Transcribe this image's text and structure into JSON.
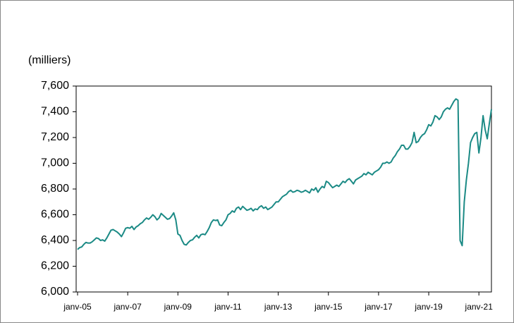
{
  "chart_data": {
    "type": "line",
    "y_label": "(milliers)",
    "categories": [
      "janv-05",
      null,
      null,
      null,
      null,
      null,
      null,
      null,
      null,
      null,
      null,
      null,
      null,
      null,
      null,
      null,
      null,
      null,
      null,
      null,
      null,
      null,
      null,
      null,
      "janv-07",
      null,
      null,
      null,
      null,
      null,
      null,
      null,
      null,
      null,
      null,
      null,
      null,
      null,
      null,
      null,
      null,
      null,
      null,
      null,
      null,
      null,
      null,
      null,
      "janv-09",
      null,
      null,
      null,
      null,
      null,
      null,
      null,
      null,
      null,
      null,
      null,
      null,
      null,
      null,
      null,
      null,
      null,
      null,
      null,
      null,
      null,
      null,
      null,
      "janv-11",
      null,
      null,
      null,
      null,
      null,
      null,
      null,
      null,
      null,
      null,
      null,
      null,
      null,
      null,
      null,
      null,
      null,
      null,
      null,
      null,
      null,
      null,
      null,
      "janv-13",
      null,
      null,
      null,
      null,
      null,
      null,
      null,
      null,
      null,
      null,
      null,
      null,
      null,
      null,
      null,
      null,
      null,
      null,
      null,
      null,
      null,
      null,
      null,
      "janv-15",
      null,
      null,
      null,
      null,
      null,
      null,
      null,
      null,
      null,
      null,
      null,
      null,
      null,
      null,
      null,
      null,
      null,
      null,
      null,
      null,
      null,
      null,
      null,
      "janv-17",
      null,
      null,
      null,
      null,
      null,
      null,
      null,
      null,
      null,
      null,
      null,
      null,
      null,
      null,
      null,
      null,
      null,
      null,
      null,
      null,
      null,
      null,
      null,
      "janv-19",
      null,
      null,
      null,
      null,
      null,
      null,
      null,
      null,
      null,
      null,
      null,
      null,
      null,
      null,
      null,
      null,
      null,
      null,
      null,
      null,
      null,
      null,
      null,
      "janv-21",
      null,
      null,
      null,
      null,
      null,
      null
    ],
    "series": [
      {
        "color": "#1b8a85",
        "values": [
          6330,
          6345,
          6350,
          6370,
          6385,
          6380,
          6380,
          6390,
          6405,
          6420,
          6415,
          6400,
          6405,
          6395,
          6420,
          6450,
          6480,
          6485,
          6475,
          6465,
          6450,
          6430,
          6460,
          6495,
          6500,
          6495,
          6510,
          6485,
          6505,
          6515,
          6530,
          6540,
          6560,
          6575,
          6565,
          6580,
          6600,
          6585,
          6560,
          6575,
          6610,
          6595,
          6580,
          6565,
          6570,
          6590,
          6615,
          6560,
          6450,
          6440,
          6400,
          6370,
          6365,
          6385,
          6400,
          6405,
          6425,
          6440,
          6420,
          6445,
          6450,
          6445,
          6470,
          6500,
          6540,
          6560,
          6555,
          6560,
          6520,
          6515,
          6540,
          6560,
          6600,
          6610,
          6630,
          6620,
          6650,
          6660,
          6640,
          6665,
          6650,
          6635,
          6640,
          6650,
          6630,
          6645,
          6640,
          6660,
          6670,
          6650,
          6660,
          6640,
          6650,
          6660,
          6680,
          6700,
          6700,
          6720,
          6740,
          6750,
          6760,
          6780,
          6790,
          6775,
          6780,
          6790,
          6785,
          6775,
          6780,
          6790,
          6780,
          6770,
          6800,
          6790,
          6810,
          6775,
          6800,
          6820,
          6810,
          6860,
          6850,
          6830,
          6810,
          6820,
          6830,
          6820,
          6840,
          6860,
          6850,
          6870,
          6880,
          6860,
          6840,
          6870,
          6880,
          6890,
          6900,
          6920,
          6910,
          6930,
          6920,
          6910,
          6930,
          6940,
          6950,
          6970,
          7000,
          7000,
          7010,
          7000,
          7010,
          7040,
          7060,
          7090,
          7110,
          7140,
          7140,
          7110,
          7110,
          7130,
          7160,
          7240,
          7160,
          7170,
          7200,
          7220,
          7230,
          7260,
          7300,
          7290,
          7320,
          7370,
          7360,
          7340,
          7360,
          7400,
          7420,
          7430,
          7420,
          7450,
          7480,
          7500,
          7490,
          6400,
          6360,
          6700,
          6870,
          7000,
          7160,
          7200,
          7230,
          7240,
          7080,
          7200,
          7370,
          7260,
          7190,
          7310,
          7420
        ]
      }
    ],
    "ylim": [
      6000,
      7600
    ],
    "yticks": [
      {
        "value": 6000,
        "label": "6,000"
      },
      {
        "value": 6200,
        "label": "6,200"
      },
      {
        "value": 6400,
        "label": "6,400"
      },
      {
        "value": 6600,
        "label": "6,600"
      },
      {
        "value": 6800,
        "label": "6,800"
      },
      {
        "value": 7000,
        "label": "7,000"
      },
      {
        "value": 7200,
        "label": "7,200"
      },
      {
        "value": 7400,
        "label": "7,400"
      },
      {
        "value": 7600,
        "label": "7,600"
      }
    ]
  }
}
